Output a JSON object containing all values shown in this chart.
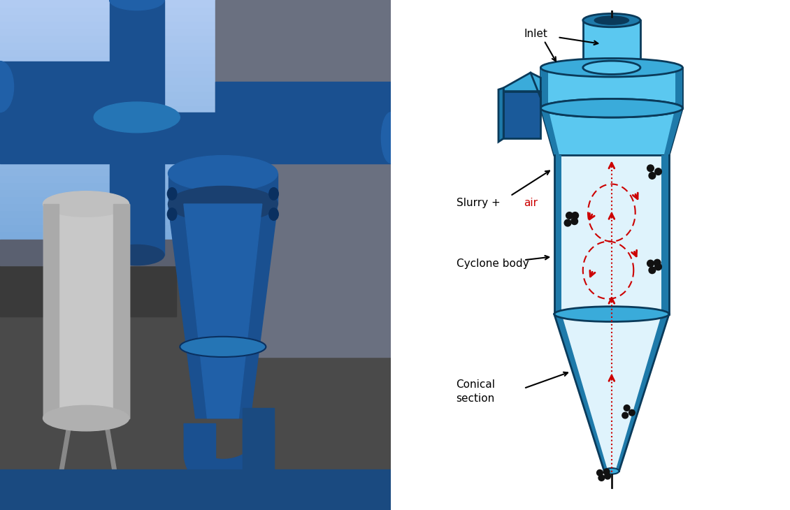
{
  "bg_color": "#ffffff",
  "diagram": {
    "body_color": "#5bc8f0",
    "body_mid": "#3aabda",
    "body_dark": "#1e7aaa",
    "body_light": "#c8eaf8",
    "body_very_light": "#dff3fc",
    "body_outline": "#0a3a5a",
    "inlet_box_color": "#1a5a9a",
    "inlet_box_mid": "#2470b8",
    "particle_color": "#111111",
    "flow_color": "#cc0000",
    "labels": {
      "inlet": "Inlet",
      "slurry": "Slurry + ",
      "air": "air",
      "air_color": "#cc0000",
      "cyclone_body": "Cyclone body",
      "conical_line1": "Conical",
      "conical_line2": "section"
    }
  }
}
